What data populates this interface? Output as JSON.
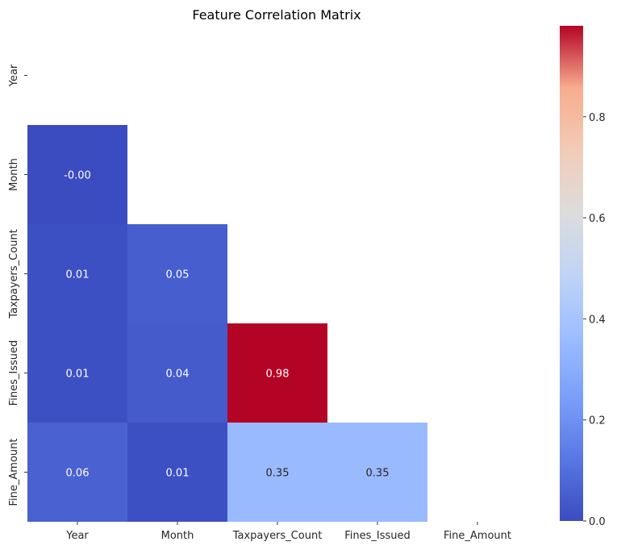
{
  "chart_data": {
    "type": "heatmap",
    "title": "Feature Correlation Matrix",
    "variables": [
      "Year",
      "Month",
      "Taxpayers_Count",
      "Fines_Issued",
      "Fine_Amount"
    ],
    "mask": "upper-triangle-including-diagonal",
    "cells": [
      {
        "row": "Month",
        "col": "Year",
        "value": -0.0,
        "label": "-0.00"
      },
      {
        "row": "Taxpayers_Count",
        "col": "Year",
        "value": 0.01,
        "label": "0.01"
      },
      {
        "row": "Taxpayers_Count",
        "col": "Month",
        "value": 0.05,
        "label": "0.05"
      },
      {
        "row": "Fines_Issued",
        "col": "Year",
        "value": 0.01,
        "label": "0.01"
      },
      {
        "row": "Fines_Issued",
        "col": "Month",
        "value": 0.04,
        "label": "0.04"
      },
      {
        "row": "Fines_Issued",
        "col": "Taxpayers_Count",
        "value": 0.98,
        "label": "0.98"
      },
      {
        "row": "Fine_Amount",
        "col": "Year",
        "value": 0.06,
        "label": "0.06"
      },
      {
        "row": "Fine_Amount",
        "col": "Month",
        "value": 0.01,
        "label": "0.01"
      },
      {
        "row": "Fine_Amount",
        "col": "Taxpayers_Count",
        "value": 0.35,
        "label": "0.35"
      },
      {
        "row": "Fine_Amount",
        "col": "Fines_Issued",
        "value": 0.35,
        "label": "0.35"
      }
    ],
    "colormap": "coolwarm",
    "colorbar": {
      "vmin": -0.0,
      "vmax": 0.98,
      "ticks": [
        0.0,
        0.2,
        0.4,
        0.6,
        0.8
      ],
      "tick_labels": [
        "0.0",
        "0.2",
        "0.4",
        "0.6",
        "0.8"
      ]
    },
    "grid": false
  }
}
